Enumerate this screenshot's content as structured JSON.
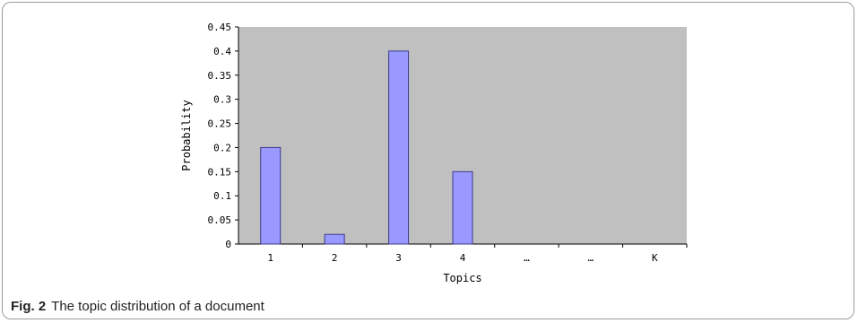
{
  "caption": {
    "label": "Fig. 2",
    "text": "The topic distribution of a document"
  },
  "chart_data": {
    "type": "bar",
    "categories": [
      "1",
      "2",
      "3",
      "4",
      "…",
      "…",
      "K"
    ],
    "values": [
      0.2,
      0.02,
      0.4,
      0.15,
      null,
      null,
      null
    ],
    "xlabel": "Topics",
    "ylabel": "Probability",
    "ylim": [
      0,
      0.45
    ],
    "yticks": [
      "0",
      "0.05",
      "0.1",
      "0.15",
      "0.2",
      "0.25",
      "0.3",
      "0.35",
      "0.4",
      "0.45"
    ],
    "grid": false,
    "legend": "none",
    "colors": {
      "plot_background": "#c0c0c0",
      "bar_fill": "#9999ff",
      "bar_stroke": "#3a3a8c"
    }
  }
}
